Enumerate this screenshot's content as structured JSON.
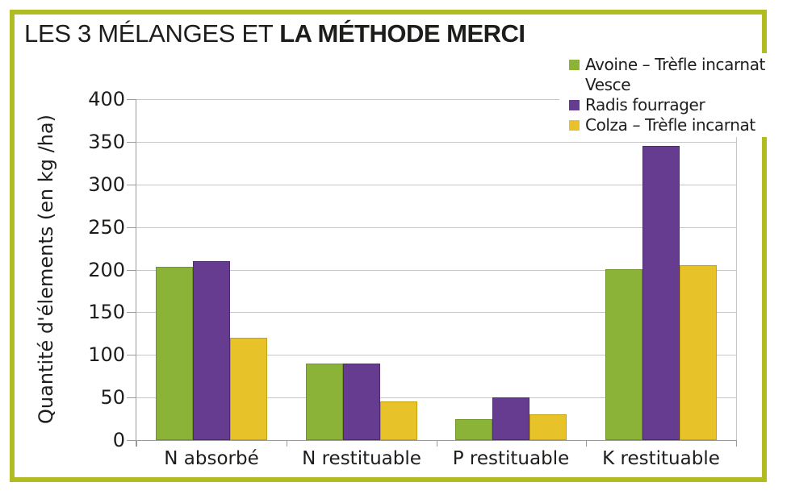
{
  "title": {
    "regular": "LES 3 MÉLANGES ET ",
    "bold": "LA MÉTHODE MERCI"
  },
  "colors": {
    "frame": "#b1bb22",
    "grid": "#c6c6c6",
    "axis": "#9b9b9b",
    "text": "#1d1d1b",
    "background": "#ffffff"
  },
  "chart_data": {
    "type": "bar",
    "categories": [
      "N absorbé",
      "N restituable",
      "P restituable",
      "K restituable"
    ],
    "series": [
      {
        "name": "Avoine – Trèfle incarnat Vesce",
        "legend_lines": [
          "Avoine – Trèfle incarnat",
          "Vesce"
        ],
        "color": "#8bb337",
        "border_color": "#6f9527",
        "values": [
          203,
          90,
          25,
          200
        ]
      },
      {
        "name": "Radis fourrager",
        "legend_lines": [
          "Radis fourrager"
        ],
        "color": "#663c90",
        "border_color": "#4c2b70",
        "values": [
          210,
          90,
          50,
          345
        ]
      },
      {
        "name": "Colza – Trèfle incarnat",
        "legend_lines": [
          "Colza – Trèfle incarnat"
        ],
        "color": "#e7c229",
        "border_color": "#c3a115",
        "values": [
          120,
          45,
          30,
          205
        ]
      }
    ],
    "title": "LES 3 MÉLANGES ET LA MÉTHODE MERCI",
    "xlabel": "",
    "ylabel": "Quantité d'élements (en kg /ha)",
    "ylim": [
      0,
      400
    ],
    "yticks": [
      0,
      50,
      100,
      150,
      200,
      250,
      300,
      350,
      400
    ],
    "grid": true,
    "legend_position": "top-right"
  }
}
